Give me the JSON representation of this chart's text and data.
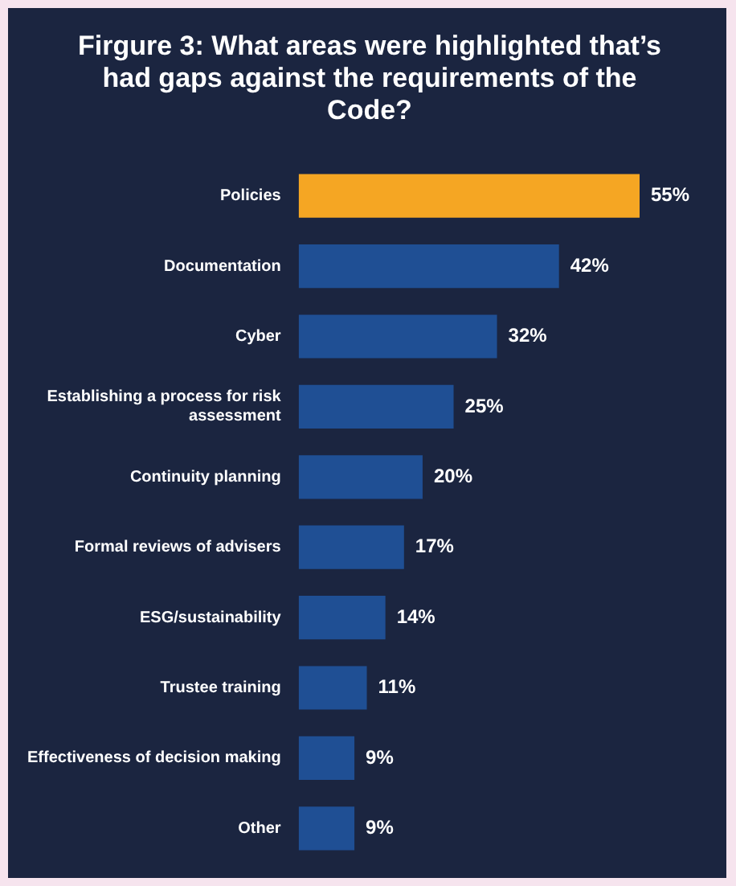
{
  "chart_data": {
    "type": "bar",
    "orientation": "horizontal",
    "title": "Firgure 3: What areas were highlighted that’s had gaps against the requirements of the Code?",
    "categories": [
      "Policies",
      "Documentation",
      "Cyber",
      "Establishing a process for risk assessment",
      "Continuity planning",
      "Formal reviews of advisers",
      "ESG/sustainability",
      "Trustee training",
      "Effectiveness of decision making",
      "Other"
    ],
    "values": [
      55,
      42,
      32,
      25,
      20,
      17,
      14,
      11,
      9,
      9
    ],
    "value_labels": [
      "55%",
      "42%",
      "32%",
      "25%",
      "20%",
      "17%",
      "14%",
      "11%",
      "9%",
      "9%"
    ],
    "colors": [
      "#f5a623",
      "#1f4f94",
      "#1f4f94",
      "#1f4f94",
      "#1f4f94",
      "#1f4f94",
      "#1f4f94",
      "#1f4f94",
      "#1f4f94",
      "#1f4f94"
    ],
    "legend": false
  }
}
